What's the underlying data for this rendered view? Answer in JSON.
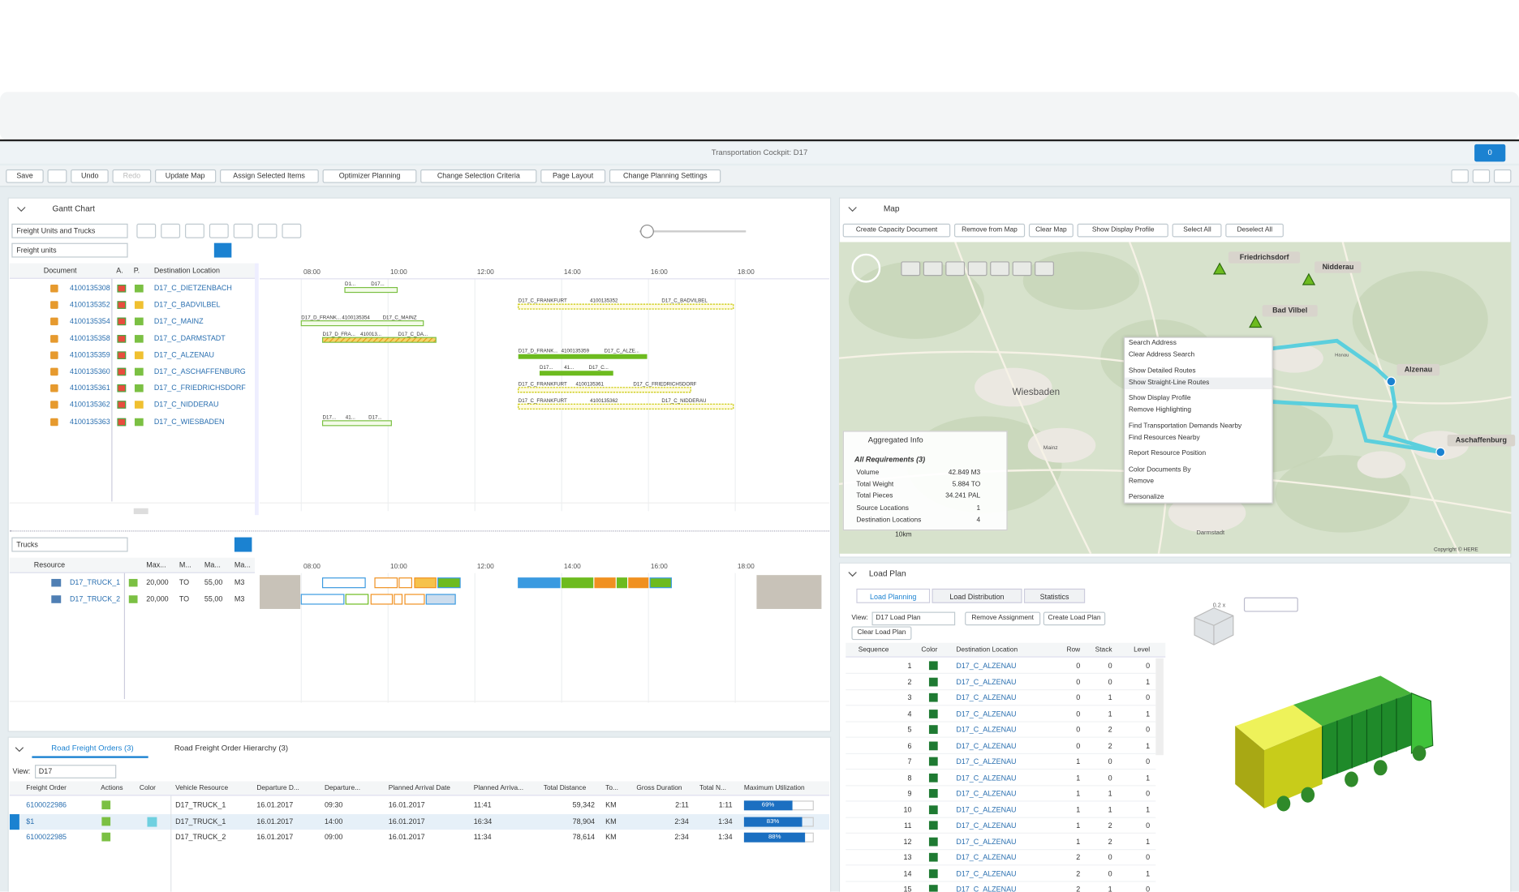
{
  "window": {
    "title": "Transportation Cockpit: D17",
    "notification": "0"
  },
  "toolbar": [
    "Save",
    "Undo",
    "Redo",
    "Update Map",
    "Assign Selected Items",
    "Optimizer Planning",
    "Change Selection Criteria",
    "Page Layout",
    "Change Planning Settings"
  ],
  "gantt": {
    "title": "Gantt Chart",
    "view": "Freight Units and Trucks",
    "filter": "Freight units",
    "columns": [
      "Document",
      "A.",
      "P.",
      "Destination Location"
    ],
    "times": [
      "08:00",
      "10:00",
      "12:00",
      "14:00",
      "16:00",
      "18:00"
    ],
    "rows": [
      {
        "document": "4100135308",
        "destination": "D17_C_DIETZENBACH"
      },
      {
        "document": "4100135352",
        "destination": "D17_C_BADVILBEL"
      },
      {
        "document": "4100135354",
        "destination": "D17_C_MAINZ"
      },
      {
        "document": "4100135358",
        "destination": "D17_C_DARMSTADT"
      },
      {
        "document": "4100135359",
        "destination": "D17_C_ALZENAU"
      },
      {
        "document": "4100135360",
        "destination": "D17_C_ASCHAFFENBURG"
      },
      {
        "document": "4100135361",
        "destination": "D17_C_FRIEDRICHSDORF"
      },
      {
        "document": "4100135362",
        "destination": "D17_C_NIDDERAU"
      },
      {
        "document": "4100135363",
        "destination": "D17_C_WIESBADEN"
      }
    ],
    "bar_labels": [
      [
        "D1...",
        "D17..."
      ],
      [
        "D17_C_FRANKFURT",
        "4100135352",
        "D17_C_BADVILBEL"
      ],
      [
        "D17_D_FRANK...",
        "4100135354",
        "D17_C_MAINZ"
      ],
      [
        "D17_D_FRA...",
        "410013...",
        "D17_C_DA..."
      ],
      [
        "D17_D_FRANK...",
        "4100135359",
        "D17_C_ALZE..."
      ],
      [
        "D17...",
        "41...",
        "D17_C..."
      ],
      [
        "D17_C_FRANKFURT",
        "4100135361",
        "D17_C_FRIEDRICHSDORF"
      ],
      [
        "D17_C_FRANKFURT",
        "4100135362",
        "D17_C_NIDDERAU"
      ],
      [
        "D17...",
        "41...",
        "D17..."
      ]
    ]
  },
  "trucks": {
    "view": "Trucks",
    "columns": [
      "Resource",
      "Max...",
      "M...",
      "Ma...",
      "Ma..."
    ],
    "rows": [
      [
        "D17_TRUCK_1",
        "20,000",
        "TO",
        "55,00",
        "M3"
      ],
      [
        "D17_TRUCK_2",
        "20,000",
        "TO",
        "55,00",
        "M3"
      ]
    ]
  },
  "orders": {
    "tabs": [
      "Road Freight Orders (3)",
      "Road Freight Order Hierarchy (3)"
    ],
    "view_label": "View:",
    "view": "D17",
    "columns": [
      "Freight Order",
      "Actions",
      "Color",
      "Vehicle Resource",
      "Departure D...",
      "Departure...",
      "Planned Arrival Date",
      "Planned Arriva...",
      "Total Distance",
      "To...",
      "Gross Duration",
      "Total N...",
      "Maximum Utilization"
    ],
    "rows": [
      [
        "6100022986",
        "D17_TRUCK_1",
        "16.01.2017",
        "09:30",
        "16.01.2017",
        "11:41",
        "59,342",
        "KM",
        "2:11",
        "1:11",
        "69%"
      ],
      [
        "$1",
        "D17_TRUCK_1",
        "16.01.2017",
        "14:00",
        "16.01.2017",
        "16:34",
        "78,904",
        "KM",
        "2:34",
        "1:34",
        "83%"
      ],
      [
        "6100022985",
        "D17_TRUCK_2",
        "16.01.2017",
        "09:00",
        "16.01.2017",
        "11:34",
        "78,614",
        "KM",
        "2:34",
        "1:34",
        "88%"
      ]
    ]
  },
  "map": {
    "title": "Map",
    "buttons": [
      "Create Capacity Document",
      "Remove from Map",
      "Clear Map",
      "Show Display Profile",
      "Select All",
      "Deselect All"
    ],
    "places": [
      "Friedrichsdorf",
      "Nidderau",
      "Bad Vilbel",
      "Alzenau",
      "Aschaffenburg"
    ],
    "towns": [
      "Wiesbaden",
      "Darmstadt",
      "Mainz",
      "Hanau"
    ],
    "scale": "10km",
    "copyright": "Copyright © HERE",
    "menu": [
      "Search Address",
      "Clear Address Search",
      "Show Detailed Routes",
      "Show Straight-Line Routes",
      "Show Display Profile",
      "Remove Highlighting",
      "Find Transportation Demands Nearby",
      "Find Resources Nearby",
      "Report Resource Position",
      "Color Documents By",
      "Remove",
      "Personalize"
    ],
    "aggregated": {
      "title": "Aggregated Info",
      "group": "All Requirements (3)",
      "rows": [
        [
          "Volume",
          "42.849 M3"
        ],
        [
          "Total Weight",
          "5.884 TO"
        ],
        [
          "Total Pieces",
          "34.241 PAL"
        ],
        [
          "Source Locations",
          "1"
        ],
        [
          "Destination Locations",
          "4"
        ]
      ]
    }
  },
  "load_plan": {
    "title": "Load Plan",
    "tabs": [
      "Load Planning",
      "Load Distribution",
      "Statistics"
    ],
    "view_label": "View:",
    "view": "D17 Load Plan",
    "buttons": [
      "Remove Assignment",
      "Create Load Plan",
      "Clear Load Plan"
    ],
    "zoom": "0.2 x",
    "columns": [
      "Sequence",
      "Color",
      "Destination Location",
      "Row",
      "Stack",
      "Level"
    ],
    "rows": [
      [
        "1",
        "D17_C_ALZENAU",
        "0",
        "0",
        "0"
      ],
      [
        "2",
        "D17_C_ALZENAU",
        "0",
        "0",
        "1"
      ],
      [
        "3",
        "D17_C_ALZENAU",
        "0",
        "1",
        "0"
      ],
      [
        "4",
        "D17_C_ALZENAU",
        "0",
        "1",
        "1"
      ],
      [
        "5",
        "D17_C_ALZENAU",
        "0",
        "2",
        "0"
      ],
      [
        "6",
        "D17_C_ALZENAU",
        "0",
        "2",
        "1"
      ],
      [
        "7",
        "D17_C_ALZENAU",
        "1",
        "0",
        "0"
      ],
      [
        "8",
        "D17_C_ALZENAU",
        "1",
        "0",
        "1"
      ],
      [
        "9",
        "D17_C_ALZENAU",
        "1",
        "1",
        "0"
      ],
      [
        "10",
        "D17_C_ALZENAU",
        "1",
        "1",
        "1"
      ],
      [
        "11",
        "D17_C_ALZENAU",
        "1",
        "2",
        "0"
      ],
      [
        "12",
        "D17_C_ALZENAU",
        "1",
        "2",
        "1"
      ],
      [
        "13",
        "D17_C_ALZENAU",
        "2",
        "0",
        "0"
      ],
      [
        "14",
        "D17_C_ALZENAU",
        "2",
        "0",
        "1"
      ],
      [
        "15",
        "D17_C_ALZENAU",
        "2",
        "1",
        "0"
      ]
    ]
  }
}
